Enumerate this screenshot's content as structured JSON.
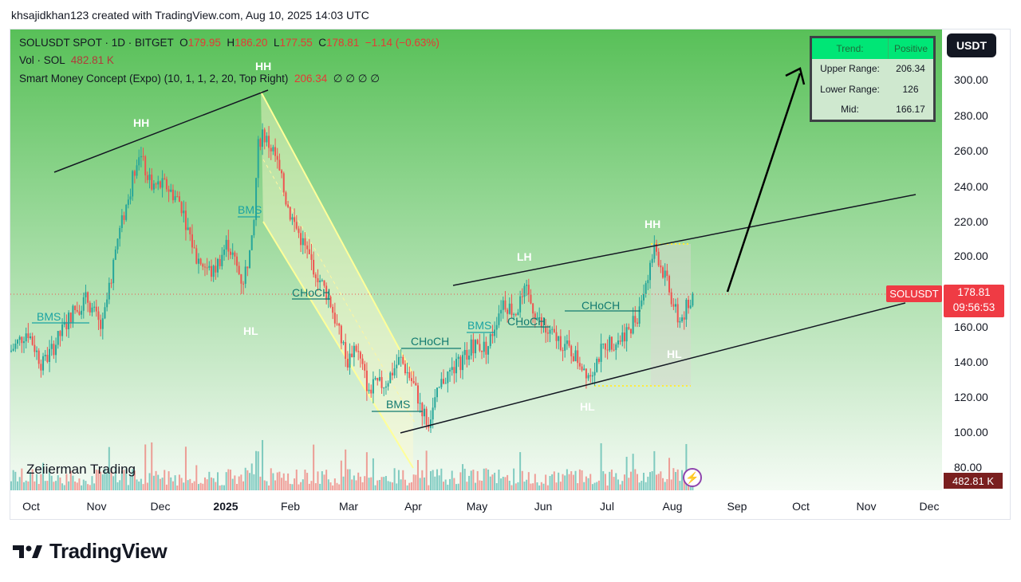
{
  "header": {
    "creator_line": "khsajidkhan123 created with TradingView.com, Aug 10, 2025 14:03 UTC"
  },
  "legend": {
    "symbol": "SOLUSDT SPOT · 1D · BITGET",
    "o_label": "O",
    "o_value": "179.95",
    "h_label": "H",
    "h_value": "186.20",
    "l_label": "L",
    "l_value": "177.55",
    "c_label": "C",
    "c_value": "178.81",
    "change": "−1.14 (−0.63%)",
    "vol_label": "Vol · SOL",
    "vol_value": "482.81 K",
    "indicator": "Smart Money Concept (Expo) (10, 1, 1, 2, 20, Top Right)",
    "indicator_value": "206.34",
    "indicator_zeros": "∅ ∅ ∅ ∅"
  },
  "currency_button": "USDT",
  "trend_table": {
    "trend_label": "Trend:",
    "trend_value": "Positive",
    "upper_label": "Upper Range:",
    "upper_value": "206.34",
    "lower_label": "Lower Range:",
    "lower_value": "126",
    "mid_label": "Mid:",
    "mid_value": "166.17"
  },
  "price_tag": {
    "symbol": "SOLUSDT",
    "price": "178.81",
    "countdown": "09:56:53"
  },
  "volume_tag": "482.81 K",
  "watermark": "Zeiierman Trading",
  "brand": "TradingView",
  "annotations": {
    "hh_top": "HH",
    "hh_left": "HH",
    "hh_right": "HH",
    "hl_left": "HL",
    "hl_bottom": "HL",
    "hl_right": "HL",
    "lh": "LH",
    "bms_1": "BMS",
    "bms_2": "BMS",
    "bms_3": "BMS",
    "bms_4": "BMS",
    "choch_1": "CHoCH",
    "choch_2": "CHoCH",
    "choch_3": "CHoCH",
    "choch_4": "CHoCH"
  },
  "colors": {
    "up": "#26a69a",
    "down": "#ef5350",
    "bg_green": "#7fd07f",
    "price_red": "#ef3b44"
  },
  "chart_data": {
    "type": "candlestick",
    "title": "SOLUSDT SPOT · 1D · BITGET",
    "x_tick_labels": [
      "Oct",
      "Nov",
      "Dec",
      "2025",
      "Feb",
      "Mar",
      "Apr",
      "May",
      "Jun",
      "Jul",
      "Aug",
      "Sep",
      "Oct",
      "Nov",
      "Dec"
    ],
    "y_tick_labels": [
      "80.00",
      "100.00",
      "120.00",
      "140.00",
      "160.00",
      "180.00",
      "200.00",
      "220.00",
      "240.00",
      "260.00",
      "280.00",
      "300.00"
    ],
    "ylim": [
      70,
      318
    ],
    "grid": false,
    "last_close": 178.81,
    "price_path": [
      {
        "date": "2024-09-23",
        "price": 146
      },
      {
        "date": "2024-10-01",
        "price": 158
      },
      {
        "date": "2024-10-08",
        "price": 138
      },
      {
        "date": "2024-10-14",
        "price": 150
      },
      {
        "date": "2024-10-22",
        "price": 168
      },
      {
        "date": "2024-10-29",
        "price": 176
      },
      {
        "date": "2024-11-05",
        "price": 158
      },
      {
        "date": "2024-11-12",
        "price": 208
      },
      {
        "date": "2024-11-18",
        "price": 236
      },
      {
        "date": "2024-11-22",
        "price": 260
      },
      {
        "date": "2024-11-28",
        "price": 240
      },
      {
        "date": "2024-12-05",
        "price": 240
      },
      {
        "date": "2024-12-12",
        "price": 230
      },
      {
        "date": "2024-12-19",
        "price": 200
      },
      {
        "date": "2024-12-27",
        "price": 190
      },
      {
        "date": "2025-01-03",
        "price": 208
      },
      {
        "date": "2025-01-10",
        "price": 185
      },
      {
        "date": "2025-01-15",
        "price": 210
      },
      {
        "date": "2025-01-17",
        "price": 260
      },
      {
        "date": "2025-01-19",
        "price": 270
      },
      {
        "date": "2025-01-25",
        "price": 258
      },
      {
        "date": "2025-02-01",
        "price": 225
      },
      {
        "date": "2025-02-10",
        "price": 200
      },
      {
        "date": "2025-02-20",
        "price": 175
      },
      {
        "date": "2025-02-28",
        "price": 140
      },
      {
        "date": "2025-03-04",
        "price": 150
      },
      {
        "date": "2025-03-10",
        "price": 125
      },
      {
        "date": "2025-03-18",
        "price": 128
      },
      {
        "date": "2025-03-25",
        "price": 142
      },
      {
        "date": "2025-03-31",
        "price": 128
      },
      {
        "date": "2025-04-07",
        "price": 105
      },
      {
        "date": "2025-04-14",
        "price": 130
      },
      {
        "date": "2025-04-21",
        "price": 138
      },
      {
        "date": "2025-04-28",
        "price": 150
      },
      {
        "date": "2025-05-05",
        "price": 148
      },
      {
        "date": "2025-05-12",
        "price": 175
      },
      {
        "date": "2025-05-18",
        "price": 168
      },
      {
        "date": "2025-05-23",
        "price": 180
      },
      {
        "date": "2025-05-31",
        "price": 158
      },
      {
        "date": "2025-06-07",
        "price": 153
      },
      {
        "date": "2025-06-14",
        "price": 145
      },
      {
        "date": "2025-06-22",
        "price": 133
      },
      {
        "date": "2025-06-29",
        "price": 150
      },
      {
        "date": "2025-07-06",
        "price": 153
      },
      {
        "date": "2025-07-14",
        "price": 165
      },
      {
        "date": "2025-07-21",
        "price": 198
      },
      {
        "date": "2025-07-23",
        "price": 204
      },
      {
        "date": "2025-07-30",
        "price": 178
      },
      {
        "date": "2025-08-03",
        "price": 162
      },
      {
        "date": "2025-08-07",
        "price": 172
      },
      {
        "date": "2025-08-10",
        "price": 178.81
      }
    ]
  }
}
